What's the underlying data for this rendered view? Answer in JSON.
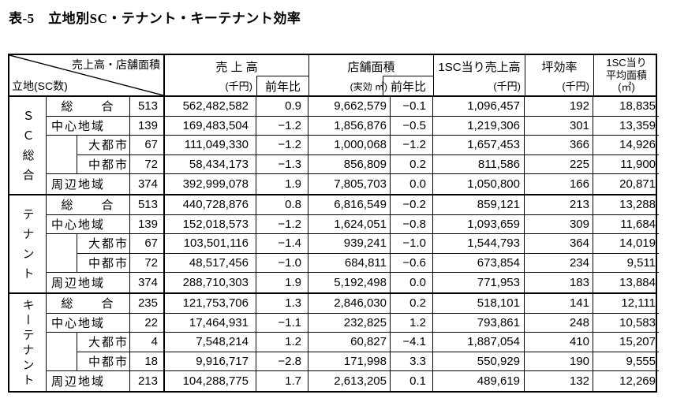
{
  "title": "表-5　立地別SC・テナント・キーテナント効率",
  "header": {
    "corner_top": "売上高・店舗面積",
    "corner_bottom": "立地(SC数)",
    "sales_title": "売 上 高",
    "sales_unit": "(千円)",
    "sales_yoy": "前年比",
    "area_title": "店舗面積",
    "area_unit": "(実効 ㎡)",
    "area_yoy": "前年比",
    "per_sc_title": "1SC当り売上高",
    "per_sc_unit": "(千円)",
    "tsubo_title": "坪効率",
    "tsubo_unit": "(千円)",
    "avg_line1": "1SC当り",
    "avg_line2": "平均面積",
    "avg_unit": "(㎡)"
  },
  "blocks": [
    {
      "group": "ＳＣ総合",
      "rows": [
        {
          "label": "総　　合",
          "count": "513",
          "sales": "562,482,582",
          "sales_yoy": "0.9",
          "area": "9,662,579",
          "area_yoy": "−0.1",
          "per_sc": "1,096,457",
          "tsubo": "192",
          "avg": "18,835"
        },
        {
          "label": "中心地域",
          "count": "139",
          "sales": "169,483,504",
          "sales_yoy": "−1.2",
          "area": "1,856,876",
          "area_yoy": "−0.5",
          "per_sc": "1,219,306",
          "tsubo": "301",
          "avg": "13,359"
        },
        {
          "label": "大都市",
          "count": "67",
          "sales": "111,049,330",
          "sales_yoy": "−1.2",
          "area": "1,000,068",
          "area_yoy": "−1.2",
          "per_sc": "1,657,453",
          "tsubo": "366",
          "avg": "14,926"
        },
        {
          "label": "中都市",
          "count": "72",
          "sales": "58,434,173",
          "sales_yoy": "−1.3",
          "area": "856,809",
          "area_yoy": "0.2",
          "per_sc": "811,586",
          "tsubo": "225",
          "avg": "11,900"
        },
        {
          "label": "周辺地域",
          "count": "374",
          "sales": "392,999,078",
          "sales_yoy": "1.9",
          "area": "7,805,703",
          "area_yoy": "0.0",
          "per_sc": "1,050,800",
          "tsubo": "166",
          "avg": "20,871"
        }
      ]
    },
    {
      "group": "テナント",
      "rows": [
        {
          "label": "総　　合",
          "count": "513",
          "sales": "440,728,876",
          "sales_yoy": "0.8",
          "area": "6,816,549",
          "area_yoy": "−0.2",
          "per_sc": "859,121",
          "tsubo": "213",
          "avg": "13,288"
        },
        {
          "label": "中心地域",
          "count": "139",
          "sales": "152,018,573",
          "sales_yoy": "−1.2",
          "area": "1,624,051",
          "area_yoy": "−0.8",
          "per_sc": "1,093,659",
          "tsubo": "309",
          "avg": "11,684"
        },
        {
          "label": "大都市",
          "count": "67",
          "sales": "103,501,116",
          "sales_yoy": "−1.4",
          "area": "939,241",
          "area_yoy": "−1.0",
          "per_sc": "1,544,793",
          "tsubo": "364",
          "avg": "14,019"
        },
        {
          "label": "中都市",
          "count": "72",
          "sales": "48,517,456",
          "sales_yoy": "−1.0",
          "area": "684,811",
          "area_yoy": "−0.6",
          "per_sc": "673,854",
          "tsubo": "234",
          "avg": "9,511"
        },
        {
          "label": "周辺地域",
          "count": "374",
          "sales": "288,710,303",
          "sales_yoy": "1.9",
          "area": "5,192,498",
          "area_yoy": "0.0",
          "per_sc": "771,953",
          "tsubo": "183",
          "avg": "13,884"
        }
      ]
    },
    {
      "group": "キーテナント",
      "rows": [
        {
          "label": "総　　合",
          "count": "235",
          "sales": "121,753,706",
          "sales_yoy": "1.3",
          "area": "2,846,030",
          "area_yoy": "0.2",
          "per_sc": "518,101",
          "tsubo": "141",
          "avg": "12,111"
        },
        {
          "label": "中心地域",
          "count": "22",
          "sales": "17,464,931",
          "sales_yoy": "−1.1",
          "area": "232,825",
          "area_yoy": "1.2",
          "per_sc": "793,861",
          "tsubo": "248",
          "avg": "10,583"
        },
        {
          "label": "大都市",
          "count": "4",
          "sales": "7,548,214",
          "sales_yoy": "1.2",
          "area": "60,827",
          "area_yoy": "−4.1",
          "per_sc": "1,887,054",
          "tsubo": "410",
          "avg": "15,207"
        },
        {
          "label": "中都市",
          "count": "18",
          "sales": "9,916,717",
          "sales_yoy": "−2.8",
          "area": "171,998",
          "area_yoy": "3.3",
          "per_sc": "550,929",
          "tsubo": "190",
          "avg": "9,555"
        },
        {
          "label": "周辺地域",
          "count": "213",
          "sales": "104,288,775",
          "sales_yoy": "1.7",
          "area": "2,613,205",
          "area_yoy": "0.1",
          "per_sc": "489,619",
          "tsubo": "132",
          "avg": "12,269"
        }
      ]
    }
  ]
}
